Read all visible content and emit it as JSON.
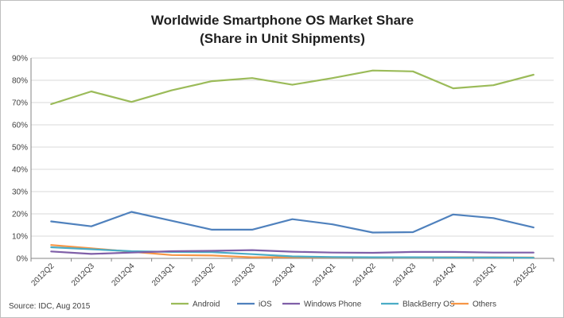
{
  "chart_data": {
    "type": "line",
    "title": [
      "Worldwide Smartphone OS Market Share",
      "(Share in Unit Shipments)"
    ],
    "xlabel": "",
    "ylabel": "",
    "categories": [
      "2012Q2",
      "2012Q3",
      "2012Q4",
      "2013Q1",
      "2013Q2",
      "2013Q3",
      "2013Q4",
      "2014Q1",
      "2014Q2",
      "2014Q3",
      "2014Q4",
      "2015Q1",
      "2015Q2"
    ],
    "ylim": [
      0,
      90
    ],
    "yticks": [
      0,
      10,
      20,
      30,
      40,
      50,
      60,
      70,
      80,
      90
    ],
    "ytick_labels": [
      "0%",
      "10%",
      "20%",
      "30%",
      "40%",
      "50%",
      "60%",
      "70%",
      "80%",
      "90%"
    ],
    "grid": "horizontal",
    "legend_position": "bottom",
    "series": [
      {
        "name": "Android",
        "color": "#9bbb59",
        "values": [
          69.3,
          75.0,
          70.3,
          75.5,
          79.6,
          81.0,
          78.0,
          81.0,
          84.4,
          84.0,
          76.4,
          77.8,
          82.5
        ]
      },
      {
        "name": "iOS",
        "color": "#4f81bd",
        "values": [
          16.6,
          14.4,
          20.9,
          16.9,
          12.9,
          12.9,
          17.6,
          15.3,
          11.6,
          11.8,
          19.7,
          18.1,
          13.9
        ]
      },
      {
        "name": "Windows Phone",
        "color": "#7f5fa8",
        "values": [
          3.1,
          2.0,
          2.6,
          3.2,
          3.4,
          3.7,
          3.0,
          2.6,
          2.5,
          2.9,
          2.9,
          2.6,
          2.6
        ]
      },
      {
        "name": "BlackBerry OS",
        "color": "#4bacc6",
        "values": [
          5.0,
          4.1,
          3.2,
          2.9,
          2.8,
          1.9,
          0.9,
          0.6,
          0.5,
          0.5,
          0.4,
          0.4,
          0.3
        ]
      },
      {
        "name": "Others",
        "color": "#f79646",
        "values": [
          6.0,
          4.5,
          3.0,
          1.5,
          1.3,
          0.5,
          0.5,
          0.5,
          0.5,
          0.4,
          0.5,
          0.5,
          0.4
        ]
      }
    ],
    "source": "Source: IDC, Aug 2015"
  }
}
